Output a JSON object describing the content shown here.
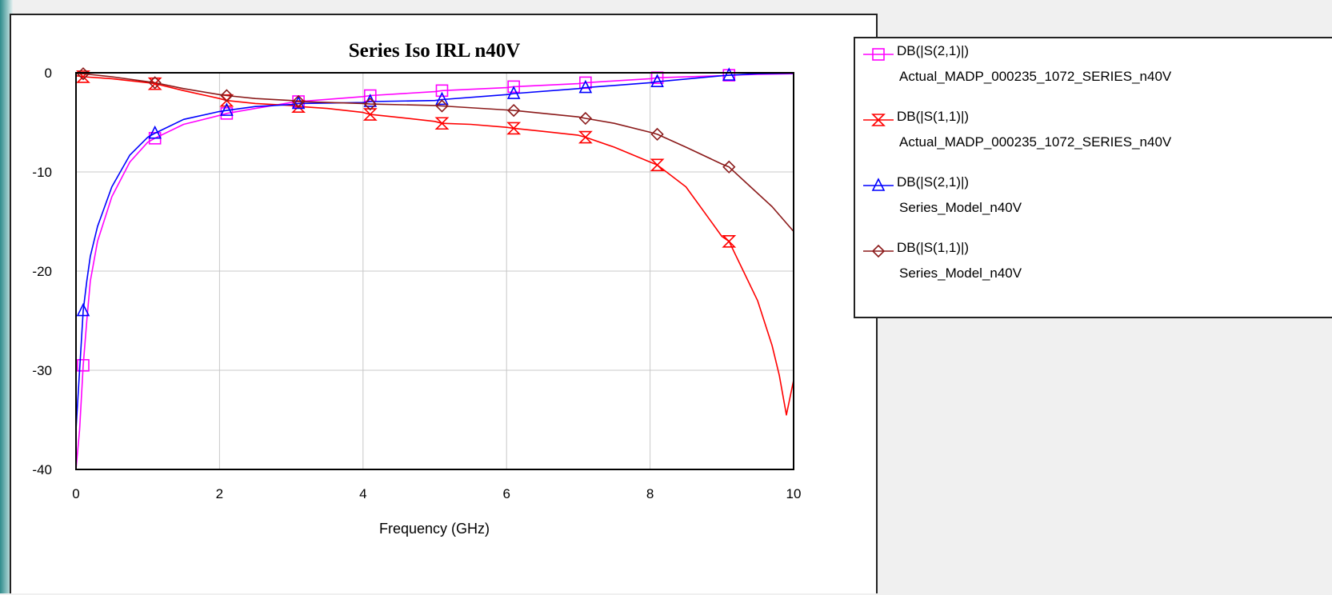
{
  "chart_data": {
    "type": "line",
    "title": "Series Iso IRL n40V",
    "xlabel": "Frequency (GHz)",
    "ylabel": "",
    "xlim": [
      0,
      10
    ],
    "ylim": [
      -40,
      0
    ],
    "x_ticks": [
      "0",
      "2",
      "4",
      "6",
      "8",
      "10"
    ],
    "y_ticks": [
      "0",
      "-10",
      "-20",
      "-30",
      "-40"
    ],
    "grid": true,
    "legend_position": "right",
    "series": [
      {
        "name": "DB(|S(2,1)|)",
        "subname": "Actual_MADP_000235_1072_SERIES_n40V",
        "color": "#ff00ff",
        "marker": "square",
        "x": [
          0.0,
          0.05,
          0.1,
          0.15,
          0.2,
          0.3,
          0.5,
          0.75,
          1.0,
          1.1,
          1.5,
          2.0,
          2.1,
          2.5,
          3.0,
          3.1,
          4.0,
          4.1,
          5.0,
          5.1,
          6.0,
          6.1,
          7.0,
          7.1,
          8.0,
          8.1,
          9.0,
          9.1,
          9.5,
          10.0
        ],
        "y": [
          -40.0,
          -36.0,
          -29.5,
          -25.0,
          -21.0,
          -17.0,
          -12.5,
          -9.0,
          -7.0,
          -6.6,
          -5.2,
          -4.3,
          -4.1,
          -3.6,
          -3.0,
          -2.9,
          -2.4,
          -2.3,
          -1.9,
          -1.8,
          -1.5,
          -1.4,
          -1.1,
          -1.0,
          -0.6,
          -0.5,
          -0.3,
          -0.25,
          -0.15,
          -0.1
        ]
      },
      {
        "name": "DB(|S(1,1)|)",
        "subname": "Actual_MADP_000235_1072_SERIES_n40V",
        "color": "#ff0000",
        "marker": "hourglass",
        "x": [
          0.0,
          0.1,
          0.5,
          1.0,
          1.1,
          1.5,
          2.0,
          2.1,
          2.5,
          3.0,
          3.1,
          3.5,
          4.0,
          4.1,
          4.5,
          5.0,
          5.1,
          5.5,
          6.0,
          6.1,
          6.5,
          7.0,
          7.1,
          7.5,
          8.0,
          8.1,
          8.5,
          8.8,
          9.0,
          9.1,
          9.3,
          9.5,
          9.7,
          9.8,
          9.9,
          10.0
        ],
        "y": [
          -0.3,
          -0.4,
          -0.6,
          -1.0,
          -1.1,
          -1.8,
          -2.6,
          -2.8,
          -3.1,
          -3.3,
          -3.4,
          -3.6,
          -4.0,
          -4.2,
          -4.5,
          -4.9,
          -5.1,
          -5.2,
          -5.5,
          -5.6,
          -5.9,
          -6.3,
          -6.5,
          -7.5,
          -9.0,
          -9.3,
          -11.5,
          -14.5,
          -16.5,
          -17.0,
          -20.0,
          -23.0,
          -27.5,
          -30.5,
          -34.5,
          -31.0
        ]
      },
      {
        "name": "DB(|S(2,1)|)",
        "subname": "Series_Model_n40V",
        "color": "#0000ff",
        "marker": "triangle",
        "x": [
          0.0,
          0.05,
          0.1,
          0.15,
          0.2,
          0.3,
          0.5,
          0.75,
          1.0,
          1.1,
          1.5,
          2.0,
          2.1,
          2.5,
          3.0,
          3.1,
          4.0,
          4.1,
          5.0,
          5.1,
          6.0,
          6.1,
          7.0,
          7.1,
          8.0,
          8.1,
          9.0,
          9.1,
          9.5,
          10.0
        ],
        "y": [
          -36.0,
          -30.0,
          -24.0,
          -21.0,
          -18.5,
          -15.5,
          -11.5,
          -8.3,
          -6.5,
          -6.1,
          -4.7,
          -3.9,
          -3.8,
          -3.4,
          -3.2,
          -3.1,
          -3.0,
          -2.9,
          -2.8,
          -2.7,
          -2.2,
          -2.1,
          -1.6,
          -1.5,
          -1.0,
          -0.9,
          -0.3,
          -0.25,
          -0.1,
          -0.05
        ]
      },
      {
        "name": "DB(|S(1,1)|)",
        "subname": "Series_Model_n40V",
        "color": "#8b1a1a",
        "marker": "diamond",
        "x": [
          0.0,
          0.1,
          0.5,
          1.0,
          1.1,
          1.5,
          2.0,
          2.1,
          2.5,
          3.0,
          3.1,
          4.0,
          4.1,
          5.0,
          5.1,
          6.0,
          6.1,
          7.0,
          7.1,
          7.5,
          8.0,
          8.1,
          8.5,
          9.0,
          9.1,
          9.4,
          9.7,
          10.0
        ],
        "y": [
          -0.05,
          -0.1,
          -0.4,
          -0.9,
          -1.0,
          -1.6,
          -2.2,
          -2.3,
          -2.6,
          -2.8,
          -2.9,
          -3.1,
          -3.15,
          -3.3,
          -3.35,
          -3.75,
          -3.8,
          -4.45,
          -4.6,
          -5.1,
          -6.0,
          -6.2,
          -7.5,
          -9.2,
          -9.5,
          -11.5,
          -13.5,
          -16.0
        ]
      }
    ]
  }
}
